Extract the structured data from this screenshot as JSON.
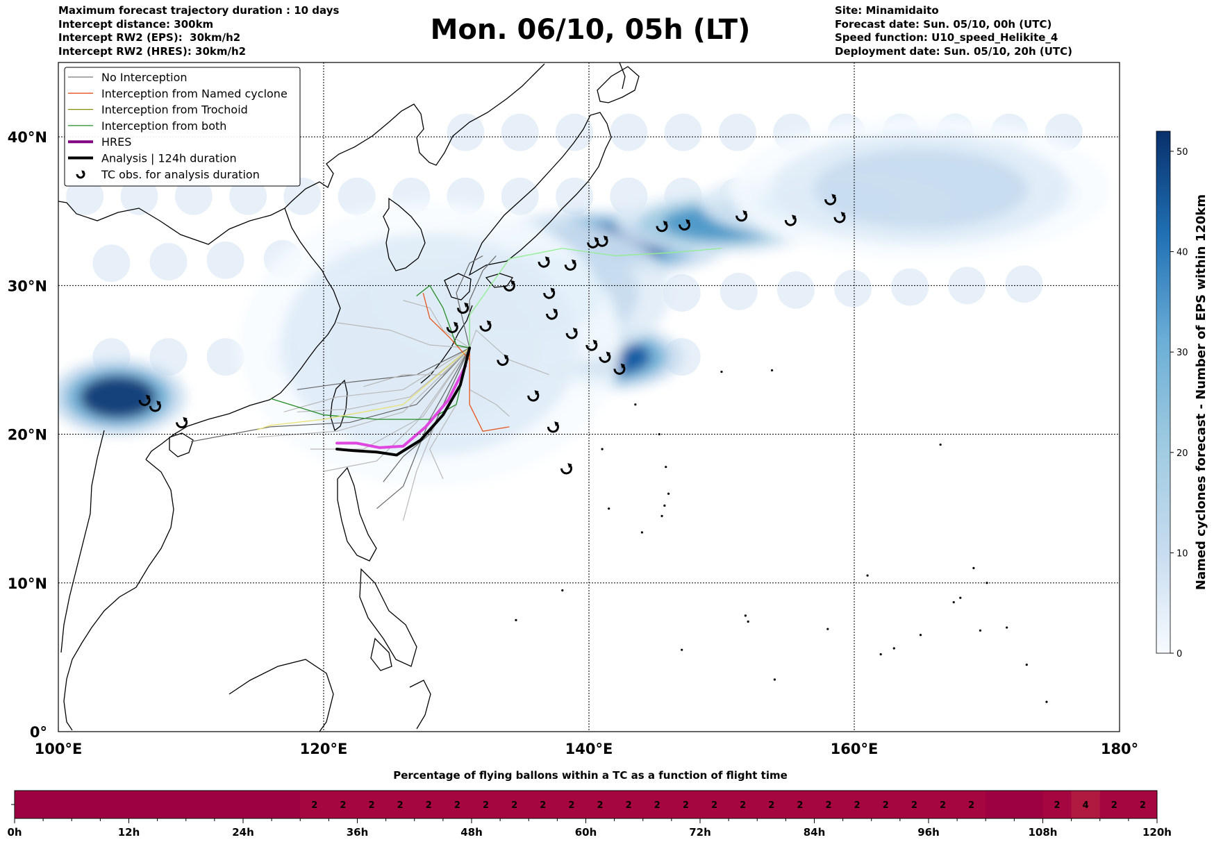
{
  "header": {
    "left": [
      "Maximum forecast trajectory duration : 10 days",
      "Intercept distance: 300km",
      "Intercept RW2 (EPS):  30km/h2",
      "Intercept RW2 (HRES): 30km/h2"
    ],
    "title": "Mon. 06/10, 05h (LT)",
    "right": [
      "Site: Minamidaito",
      "Forecast date: Sun. 05/10, 00h (UTC)",
      "Speed function: U10_speed_Helikite_4",
      "Deployment date: Sun. 05/10, 20h (UTC)"
    ]
  },
  "chart_data": [
    {
      "type": "heatmap",
      "kind": "map",
      "xlim": [
        100,
        180
      ],
      "ylim": [
        0,
        45
      ],
      "lon_ticks": [
        {
          "value": 100,
          "label": "100°E"
        },
        {
          "value": 120,
          "label": "120°E"
        },
        {
          "value": 140,
          "label": "140°E"
        },
        {
          "value": 160,
          "label": "160°E"
        },
        {
          "value": 180,
          "label": "180°"
        }
      ],
      "lat_ticks": [
        {
          "value": 0,
          "label": "0°"
        },
        {
          "value": 10,
          "label": "10°N"
        },
        {
          "value": 20,
          "label": "20°N"
        },
        {
          "value": 30,
          "label": "30°N"
        },
        {
          "value": 40,
          "label": "40°N"
        }
      ],
      "grid": true,
      "legend_position": "top-left",
      "legend": [
        {
          "label": "No Interception",
          "color": "#777777",
          "style": "line"
        },
        {
          "label": "Interception from Named cyclone",
          "color": "#e8541c",
          "style": "line"
        },
        {
          "label": "Interception from Trochoid",
          "color": "#8a8a10",
          "style": "line"
        },
        {
          "label": "Interception from both",
          "color": "#238b23",
          "style": "line"
        },
        {
          "label": "HRES",
          "color": "#800080",
          "style": "thick"
        },
        {
          "label": "Analysis | 124h duration",
          "color": "#000000",
          "style": "thick"
        },
        {
          "label": "TC obs. for analysis duration",
          "color": "#000000",
          "style": "marker"
        }
      ],
      "colorbar": {
        "label": "Named cyclones forecast - Number of EPS within 120km",
        "range": [
          0,
          52
        ],
        "ticks": [
          0,
          10,
          20,
          30,
          40,
          50
        ],
        "colors": [
          "#f7fbff",
          "#deebf7",
          "#c6dbef",
          "#9ecae1",
          "#6baed6",
          "#4292c6",
          "#2171b5",
          "#08519c",
          "#08306b"
        ]
      },
      "density_blobs": [
        {
          "lon": 104.5,
          "lat": 22.5,
          "value": 52,
          "rlon": 3.2,
          "rlat": 1.6
        },
        {
          "lon": 141.5,
          "lat": 25.2,
          "value": 46,
          "rlon": 3.5,
          "rlat": 1.4
        },
        {
          "lon": 141,
          "lat": 32.8,
          "value": 48,
          "rlon": 6,
          "rlat": 1.4
        },
        {
          "lon": 150,
          "lat": 34.2,
          "value": 35,
          "rlon": 5,
          "rlat": 1.3
        },
        {
          "lon": 158,
          "lat": 35.5,
          "value": 25,
          "rlon": 6,
          "rlat": 1.5
        },
        {
          "lon": 135,
          "lat": 29.5,
          "value": 25,
          "rlon": 7,
          "rlat": 3.2
        },
        {
          "lon": 165,
          "lat": 36.5,
          "value": 12,
          "rlon": 9,
          "rlat": 3
        },
        {
          "lon": 128,
          "lat": 26,
          "value": 8,
          "rlon": 9,
          "rlat": 6
        }
      ],
      "tc_observations": [
        [
          106.5,
          22.3
        ],
        [
          107.3,
          21.9
        ],
        [
          109.3,
          20.8
        ],
        [
          132.2,
          27.3
        ],
        [
          130.5,
          28.5
        ],
        [
          129.7,
          27.2
        ],
        [
          133.5,
          25
        ],
        [
          134,
          30
        ],
        [
          135.8,
          22.6
        ],
        [
          137.3,
          20.5
        ],
        [
          138.3,
          17.7
        ],
        [
          136.6,
          31.6
        ],
        [
          137,
          29.5
        ],
        [
          137.2,
          28.1
        ],
        [
          138.6,
          31.4
        ],
        [
          138.7,
          26.8
        ],
        [
          140.2,
          26
        ],
        [
          141.2,
          25.2
        ],
        [
          142.3,
          24.4
        ],
        [
          140.3,
          32.9
        ],
        [
          141,
          33
        ],
        [
          145.5,
          34
        ],
        [
          147.2,
          34.1
        ],
        [
          151.5,
          34.7
        ],
        [
          155.2,
          34.4
        ],
        [
          158.2,
          35.8
        ],
        [
          158.9,
          34.6
        ]
      ],
      "series": [
        {
          "name": "Analysis | 124h duration",
          "points": [
            [
              131,
              25.8
            ],
            [
              130.3,
              23.3
            ],
            [
              129,
              21.3
            ],
            [
              127.3,
              19.6
            ],
            [
              125.5,
              18.6
            ],
            [
              124,
              18.8
            ],
            [
              122.2,
              18.9
            ],
            [
              121,
              19
            ]
          ]
        },
        {
          "name": "HRES",
          "points": [
            [
              130.7,
              24.6
            ],
            [
              129.4,
              22.3
            ],
            [
              127.7,
              20.5
            ],
            [
              126,
              19.2
            ],
            [
              124.2,
              19.1
            ],
            [
              122.5,
              19.4
            ],
            [
              121,
              19.4
            ]
          ]
        }
      ]
    },
    {
      "type": "heatmap",
      "title": "Percentage of flying ballons within a TC as a function of flight time",
      "x_ticks": [
        "0h",
        "12h",
        "24h",
        "36h",
        "48h",
        "60h",
        "72h",
        "84h",
        "96h",
        "108h",
        "120h"
      ],
      "x_range": [
        0,
        120
      ],
      "bins": 40,
      "values": [
        null,
        null,
        null,
        null,
        null,
        null,
        null,
        null,
        null,
        null,
        2,
        2,
        2,
        2,
        2,
        2,
        2,
        2,
        2,
        2,
        2,
        2,
        2,
        2,
        2,
        2,
        2,
        2,
        2,
        2,
        2,
        2,
        2,
        2,
        null,
        null,
        2,
        4,
        2,
        2
      ],
      "colors": {
        "base": "#9e0142",
        "value_2": "#a6063f",
        "value_4": "#b01a40"
      }
    }
  ]
}
